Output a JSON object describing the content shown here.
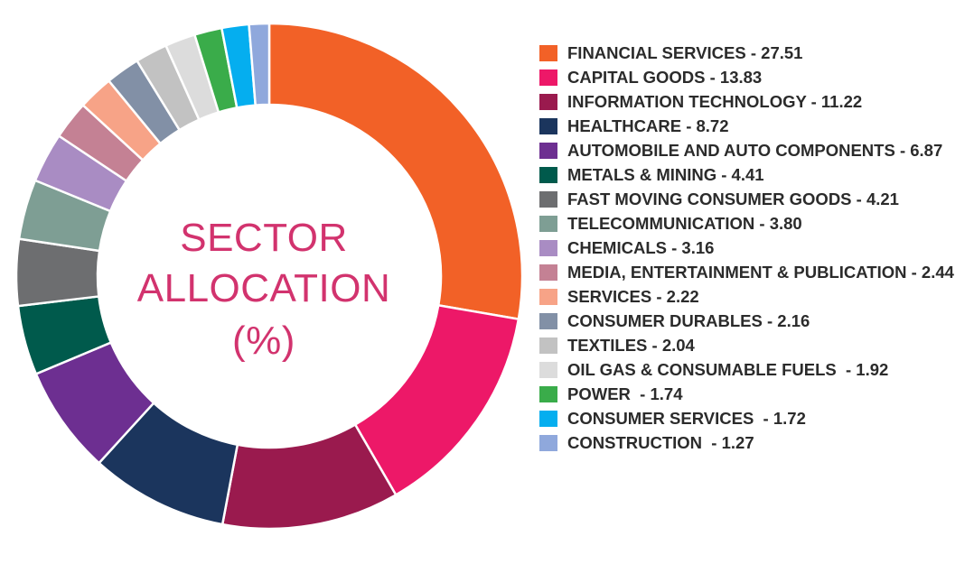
{
  "chart_data": {
    "type": "pie",
    "title": [
      "SECTOR",
      "ALLOCATION",
      "(%)"
    ],
    "slices": [
      {
        "label": "FINANCIAL SERVICES - 27.51",
        "value": 27.51,
        "color": "#f26127"
      },
      {
        "label": "CAPITAL GOODS - 13.83",
        "value": 13.83,
        "color": "#ed1868"
      },
      {
        "label": "INFORMATION TECHNOLOGY - 11.22",
        "value": 11.22,
        "color": "#9a1a4e"
      },
      {
        "label": "HEALTHCARE - 8.72",
        "value": 8.72,
        "color": "#1b355d"
      },
      {
        "label": "AUTOMOBILE AND AUTO COMPONENTS - 6.87",
        "value": 6.87,
        "color": "#6d2f91"
      },
      {
        "label": "METALS & MINING - 4.41",
        "value": 4.41,
        "color": "#005a4c"
      },
      {
        "label": "FAST MOVING CONSUMER GOODS - 4.21",
        "value": 4.21,
        "color": "#6d6e70"
      },
      {
        "label": "TELECOMMUNICATION - 3.80",
        "value": 3.8,
        "color": "#7e9e94"
      },
      {
        "label": "CHEMICALS - 3.16",
        "value": 3.16,
        "color": "#a98cc3"
      },
      {
        "label": "MEDIA, ENTERTAINMENT & PUBLICATION - 2.44",
        "value": 2.44,
        "color": "#c48194"
      },
      {
        "label": "SERVICES - 2.22",
        "value": 2.22,
        "color": "#f7a387"
      },
      {
        "label": "CONSUMER DURABLES - 2.16",
        "value": 2.16,
        "color": "#8290a6"
      },
      {
        "label": "TEXTILES - 2.04",
        "value": 2.04,
        "color": "#c2c2c2"
      },
      {
        "label": "OIL GAS & CONSUMABLE FUELS  - 1.92",
        "value": 1.92,
        "color": "#dcdcdc"
      },
      {
        "label": "POWER  - 1.74",
        "value": 1.74,
        "color": "#3aac4a"
      },
      {
        "label": "CONSUMER SERVICES  - 1.72",
        "value": 1.72,
        "color": "#05aeef"
      },
      {
        "label": "CONSTRUCTION  - 1.27",
        "value": 1.27,
        "color": "#8fa8dc"
      }
    ],
    "legend_position": "right"
  }
}
